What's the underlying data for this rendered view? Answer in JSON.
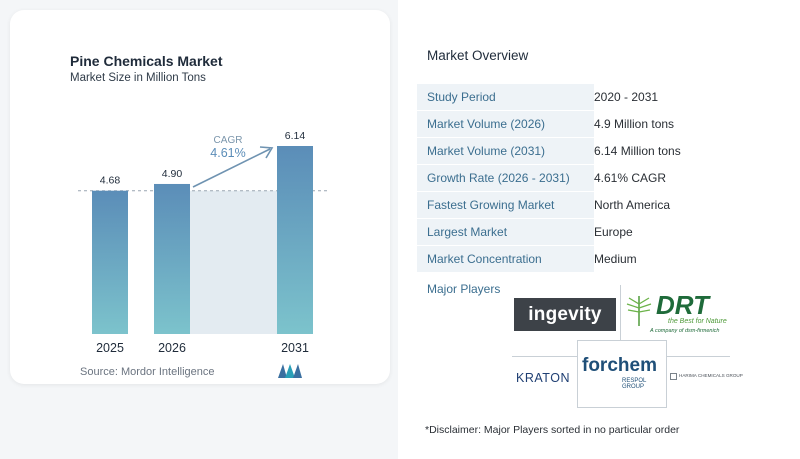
{
  "chart": {
    "title": "Pine Chemicals Market",
    "subtitle": "Market Size in Million Tons",
    "source": "Source:  Mordor Intelligence",
    "cagr_label": "CAGR",
    "cagr_value": "4.61%"
  },
  "chart_data": {
    "type": "bar",
    "categories": [
      "2025",
      "2026",
      "2031"
    ],
    "values": [
      4.68,
      4.9,
      6.14
    ],
    "value_labels": [
      "4.68",
      "4.90",
      "6.14"
    ],
    "title": "Pine Chemicals Market",
    "subtitle": "Market Size in Million Tons",
    "xlabel": "",
    "ylabel": "",
    "ylim": [
      0,
      6.14
    ],
    "grid": false,
    "annotation": {
      "label": "CAGR",
      "value": "4.61%"
    }
  },
  "overview": {
    "title": "Market Overview",
    "rows": [
      {
        "label": "Study Period",
        "value": "2020 - 2031"
      },
      {
        "label": "Market Volume (2026)",
        "value": "4.9 Million tons"
      },
      {
        "label": "Market Volume (2031)",
        "value": "6.14 Million tons"
      },
      {
        "label": "Growth Rate (2026 - 2031)",
        "value": "4.61% CAGR"
      },
      {
        "label": "Fastest Growing Market",
        "value": "North America"
      },
      {
        "label": "Largest Market",
        "value": "Europe"
      },
      {
        "label": "Market Concentration",
        "value": "Medium"
      }
    ],
    "players_label": "Major Players",
    "players": [
      "ingevity",
      "DRT",
      "the Best for Nature",
      "A company of dsm-firmenich",
      "KRATON",
      "forchem",
      "RESPOL GROUP",
      "HARIMA CHEMICALS GROUP"
    ],
    "disclaimer": "*Disclaimer: Major Players sorted in no particular order"
  },
  "colors": {
    "bar_top": "#5b8db8",
    "bar_bottom": "#7cc3cc",
    "accent": "#3b6e8f",
    "band": "#e3ebf1"
  }
}
